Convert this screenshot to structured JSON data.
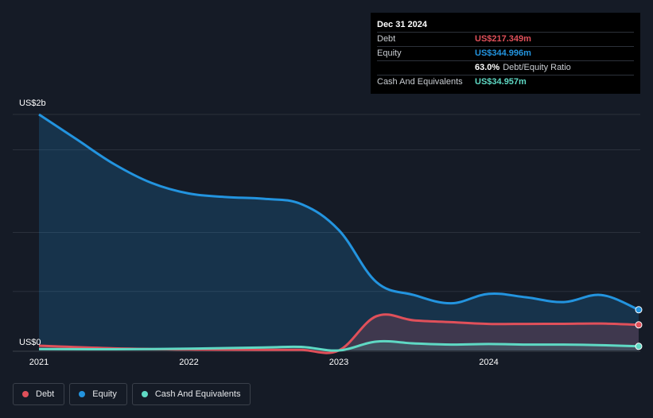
{
  "tooltip": {
    "date": "Dec 31 2024",
    "debt_label": "Debt",
    "debt_value": "US$217.349m",
    "equity_label": "Equity",
    "equity_value": "US$344.996m",
    "ratio_value": "63.0%",
    "ratio_label": "Debt/Equity Ratio",
    "cash_label": "Cash And Equivalents",
    "cash_value": "US$34.957m"
  },
  "colors": {
    "debt": "#e0505a",
    "equity": "#2394df",
    "cash": "#5fd9c4"
  },
  "legend": [
    {
      "key": "debt",
      "label": "Debt"
    },
    {
      "key": "equity",
      "label": "Equity"
    },
    {
      "key": "cash",
      "label": "Cash And Equivalents"
    }
  ],
  "chart_data": {
    "type": "area",
    "ylabel_top": "US$2b",
    "ylabel_bottom": "US$0",
    "ylim": [
      0,
      2000
    ],
    "x_ticks": [
      "2021",
      "2022",
      "2023",
      "2024"
    ],
    "xlim": [
      2021.0,
      2025.0
    ],
    "series": [
      {
        "name": "Debt",
        "key": "debt",
        "points": [
          [
            2021.0,
            40
          ],
          [
            2021.5,
            18
          ],
          [
            2022.0,
            8
          ],
          [
            2022.5,
            5
          ],
          [
            2022.75,
            5
          ],
          [
            2023.0,
            0
          ],
          [
            2023.25,
            290
          ],
          [
            2023.5,
            255
          ],
          [
            2023.75,
            240
          ],
          [
            2024.0,
            225
          ],
          [
            2024.25,
            225
          ],
          [
            2024.5,
            226
          ],
          [
            2024.75,
            228
          ],
          [
            2025.0,
            217
          ]
        ]
      },
      {
        "name": "Equity",
        "key": "equity",
        "points": [
          [
            2021.0,
            2000
          ],
          [
            2021.25,
            1790
          ],
          [
            2021.5,
            1580
          ],
          [
            2021.75,
            1420
          ],
          [
            2022.0,
            1330
          ],
          [
            2022.25,
            1300
          ],
          [
            2022.5,
            1285
          ],
          [
            2022.75,
            1240
          ],
          [
            2023.0,
            1020
          ],
          [
            2023.25,
            580
          ],
          [
            2023.5,
            470
          ],
          [
            2023.75,
            400
          ],
          [
            2024.0,
            480
          ],
          [
            2024.25,
            450
          ],
          [
            2024.5,
            410
          ],
          [
            2024.75,
            470
          ],
          [
            2025.0,
            345
          ]
        ]
      },
      {
        "name": "Cash And Equivalents",
        "key": "cash",
        "points": [
          [
            2021.0,
            12
          ],
          [
            2021.5,
            10
          ],
          [
            2022.0,
            15
          ],
          [
            2022.5,
            25
          ],
          [
            2022.75,
            30
          ],
          [
            2023.0,
            0
          ],
          [
            2023.25,
            75
          ],
          [
            2023.5,
            60
          ],
          [
            2023.75,
            50
          ],
          [
            2024.0,
            55
          ],
          [
            2024.25,
            50
          ],
          [
            2024.5,
            50
          ],
          [
            2024.75,
            45
          ],
          [
            2025.0,
            35
          ]
        ]
      }
    ],
    "grid": true,
    "legend_position": "bottom-left"
  }
}
